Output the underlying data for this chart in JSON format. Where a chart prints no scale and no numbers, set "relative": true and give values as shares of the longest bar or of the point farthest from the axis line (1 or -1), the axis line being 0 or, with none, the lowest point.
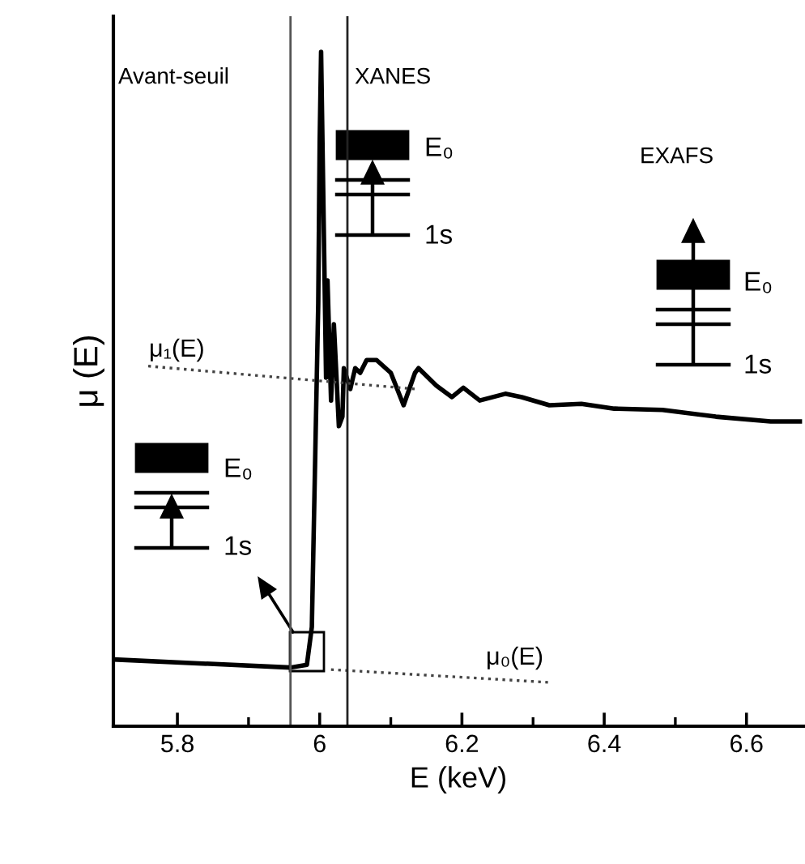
{
  "chart_data": {
    "type": "line",
    "relative": true,
    "xlabel": "E (keV)",
    "ylabel": "μ (E)",
    "xlim": [
      5.71,
      6.68
    ],
    "xticks": [
      5.8,
      {
        "value": 6,
        "label": "6"
      },
      6.2,
      6.4,
      6.6
    ],
    "grid": false,
    "legend": false,
    "tick_labels": "x",
    "series": [
      {
        "color": "#000000",
        "line_style": "solid",
        "x": [
          5.71,
          5.959,
          5.982,
          5.989,
          5.998,
          6.0,
          6.002,
          6.009,
          6.011,
          6.016,
          6.02,
          6.027,
          6.032,
          6.034,
          6.043,
          6.05,
          6.057,
          6.066,
          6.08,
          6.1,
          6.118,
          6.134,
          6.139,
          6.164,
          6.186,
          6.202,
          6.225,
          6.261,
          6.284,
          6.323,
          6.368,
          6.414,
          6.482,
          6.557,
          6.634,
          6.675
        ],
        "values": [
          0.099,
          0.087,
          0.091,
          0.147,
          0.627,
          0.865,
          1.0,
          0.517,
          0.661,
          0.483,
          0.596,
          0.445,
          0.459,
          0.531,
          0.5,
          0.531,
          0.524,
          0.543,
          0.543,
          0.524,
          0.476,
          0.524,
          0.531,
          0.505,
          0.488,
          0.502,
          0.483,
          0.493,
          0.488,
          0.476,
          0.478,
          0.471,
          0.469,
          0.459,
          0.452,
          0.452
        ]
      },
      {
        "name": "μ₁(E)",
        "color": "#444444",
        "line_style": "dotted",
        "x": [
          5.759,
          6.134
        ],
        "values": [
          0.534,
          0.5
        ]
      },
      {
        "name": "μ₀(E)",
        "color": "#444444",
        "line_style": "dotted",
        "x": [
          6.016,
          6.323
        ],
        "values": [
          0.084,
          0.065
        ]
      }
    ],
    "ref_lines": [
      {
        "axis": "x",
        "value": 5.959,
        "color": "#555555",
        "line_style": "solid"
      },
      {
        "axis": "x",
        "value": 6.039,
        "color": "#222222",
        "line_style": "solid"
      }
    ],
    "annotations": [
      "Avant-seuil",
      "XANES",
      "EXAFS",
      "E₀",
      "1s",
      "E₀",
      "1s",
      "E₀",
      "1s"
    ]
  }
}
